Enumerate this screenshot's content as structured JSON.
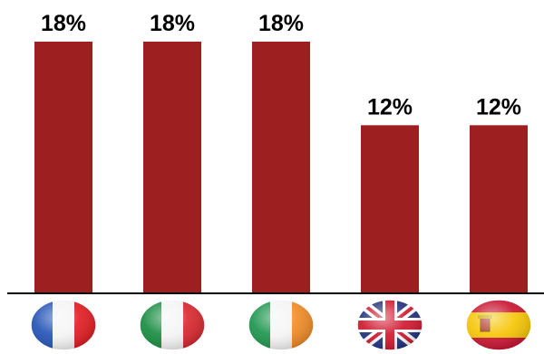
{
  "chart_data": {
    "type": "bar",
    "categories": [
      "France",
      "Italy",
      "Ireland",
      "United Kingdom",
      "Spain"
    ],
    "category_icons": [
      "flag-france-icon",
      "flag-italy-icon",
      "flag-ireland-icon",
      "flag-uk-icon",
      "flag-spain-icon"
    ],
    "values": [
      18,
      18,
      18,
      12,
      12
    ],
    "value_labels": [
      "18%",
      "18%",
      "18%",
      "12%",
      "12%"
    ],
    "ylim": [
      0,
      18
    ],
    "grid": false,
    "legend": "none",
    "bar_color": "#9e1f20"
  }
}
